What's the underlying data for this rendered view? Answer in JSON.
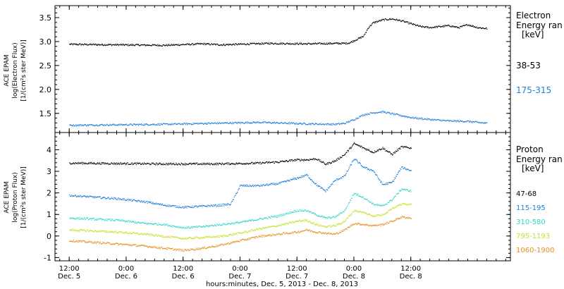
{
  "chart_data": [
    {
      "type": "scatter",
      "panel": "electron",
      "ylabel_lines": [
        "ACE EPAM",
        "log(Electron Flux)",
        "[1/(cm²s ster MeV)]"
      ],
      "legend_title_lines": [
        "Electron",
        "Energy ran",
        "[keV]"
      ],
      "ylim": [
        1.1,
        3.75
      ],
      "yticks": [
        "1.5",
        "2.0",
        "2.5",
        "3.0",
        "3.5"
      ],
      "series": [
        {
          "name": "38-53",
          "color": "#000000",
          "points": [
            [
              0,
              2.95
            ],
            [
              20,
              2.93
            ],
            [
              28,
              2.96
            ],
            [
              32,
              2.94
            ],
            [
              42,
              2.97
            ],
            [
              50,
              2.96
            ],
            [
              56,
              2.97
            ],
            [
              58,
              2.97
            ],
            [
              59,
              2.98
            ],
            [
              62,
              3.12
            ],
            [
              63,
              3.3
            ],
            [
              64,
              3.4
            ],
            [
              66,
              3.46
            ],
            [
              68,
              3.48
            ],
            [
              70,
              3.44
            ],
            [
              72,
              3.38
            ],
            [
              74,
              3.32
            ],
            [
              76,
              3.3
            ],
            [
              78,
              3.32
            ],
            [
              80,
              3.34
            ],
            [
              82,
              3.3
            ],
            [
              84,
              3.36
            ],
            [
              86,
              3.3
            ],
            [
              88,
              3.28
            ]
          ]
        },
        {
          "name": "175-315",
          "color": "#1f7fd6",
          "points": [
            [
              0,
              1.26
            ],
            [
              20,
              1.28
            ],
            [
              30,
              1.3
            ],
            [
              40,
              1.32
            ],
            [
              50,
              1.29
            ],
            [
              56,
              1.28
            ],
            [
              58,
              1.3
            ],
            [
              60,
              1.38
            ],
            [
              62,
              1.48
            ],
            [
              64,
              1.52
            ],
            [
              66,
              1.54
            ],
            [
              68,
              1.5
            ],
            [
              70,
              1.46
            ],
            [
              72,
              1.42
            ],
            [
              76,
              1.38
            ],
            [
              80,
              1.35
            ],
            [
              84,
              1.34
            ],
            [
              88,
              1.3
            ]
          ]
        }
      ]
    },
    {
      "type": "scatter",
      "panel": "proton",
      "ylabel_lines": [
        "ACE EPAM",
        "log(Proton Flux)",
        "[1/(cm²s ster MeV)]"
      ],
      "legend_title_lines": [
        "Proton",
        "Energy ran",
        "[keV]"
      ],
      "ylim": [
        -1.15,
        4.8
      ],
      "yticks": [
        "-1",
        "0",
        "1",
        "2",
        "3",
        "4"
      ],
      "xlabel": "hours:minutes, Dec. 5, 2013 - Dec. 8, 2013",
      "xlim": [
        -3,
        93
      ],
      "xticks": [
        {
          "x": 0,
          "time": "12:00",
          "day": "Dec. 5"
        },
        {
          "x": 12,
          "time": "0:00",
          "day": "Dec. 6"
        },
        {
          "x": 24,
          "time": "12:00",
          "day": "Dec. 6"
        },
        {
          "x": 36,
          "time": "0:00",
          "day": "Dec. 7"
        },
        {
          "x": 48,
          "time": "12:00",
          "day": "Dec. 7"
        },
        {
          "x": 60,
          "time": "0:00",
          "day": "Dec. 8"
        },
        {
          "x": 72,
          "time": "12:00",
          "day": "Dec. 8"
        }
      ],
      "series": [
        {
          "name": "47-68",
          "color": "#000000",
          "points": [
            [
              0,
              3.4
            ],
            [
              10,
              3.38
            ],
            [
              20,
              3.36
            ],
            [
              30,
              3.36
            ],
            [
              36,
              3.38
            ],
            [
              40,
              3.4
            ],
            [
              44,
              3.45
            ],
            [
              48,
              3.55
            ],
            [
              50,
              3.55
            ],
            [
              52,
              3.6
            ],
            [
              54,
              3.35
            ],
            [
              56,
              3.5
            ],
            [
              58,
              3.8
            ],
            [
              60,
              4.3
            ],
            [
              62,
              4.1
            ],
            [
              64,
              3.9
            ],
            [
              66,
              4.1
            ],
            [
              68,
              3.8
            ],
            [
              70,
              4.15
            ],
            [
              72,
              4.1
            ]
          ]
        },
        {
          "name": "115-195",
          "color": "#1f7fd6",
          "points": [
            [
              0,
              1.9
            ],
            [
              10,
              1.75
            ],
            [
              16,
              1.6
            ],
            [
              20,
              1.45
            ],
            [
              24,
              1.35
            ],
            [
              28,
              1.4
            ],
            [
              32,
              1.45
            ],
            [
              34,
              1.5
            ],
            [
              36,
              2.35
            ],
            [
              40,
              2.35
            ],
            [
              44,
              2.45
            ],
            [
              48,
              2.7
            ],
            [
              50,
              2.85
            ],
            [
              52,
              2.4
            ],
            [
              54,
              2.1
            ],
            [
              56,
              2.6
            ],
            [
              58,
              2.8
            ],
            [
              60,
              3.6
            ],
            [
              62,
              3.2
            ],
            [
              64,
              3.05
            ],
            [
              66,
              2.4
            ],
            [
              68,
              2.5
            ],
            [
              70,
              3.2
            ],
            [
              72,
              3.05
            ]
          ]
        },
        {
          "name": "310-580",
          "color": "#33d6c8",
          "points": [
            [
              0,
              0.85
            ],
            [
              10,
              0.75
            ],
            [
              16,
              0.6
            ],
            [
              20,
              0.55
            ],
            [
              24,
              0.4
            ],
            [
              28,
              0.45
            ],
            [
              32,
              0.55
            ],
            [
              36,
              0.65
            ],
            [
              40,
              0.8
            ],
            [
              44,
              0.95
            ],
            [
              48,
              1.2
            ],
            [
              50,
              1.2
            ],
            [
              52,
              1.0
            ],
            [
              54,
              0.85
            ],
            [
              56,
              0.9
            ],
            [
              58,
              1.2
            ],
            [
              60,
              2.0
            ],
            [
              62,
              1.8
            ],
            [
              64,
              1.5
            ],
            [
              66,
              1.4
            ],
            [
              68,
              1.7
            ],
            [
              70,
              2.2
            ],
            [
              72,
              2.1
            ]
          ]
        },
        {
          "name": "795-1193",
          "color": "#c8e02a",
          "points": [
            [
              0,
              0.3
            ],
            [
              10,
              0.2
            ],
            [
              16,
              0.1
            ],
            [
              20,
              0.0
            ],
            [
              24,
              -0.1
            ],
            [
              28,
              -0.05
            ],
            [
              32,
              0.0
            ],
            [
              36,
              0.15
            ],
            [
              40,
              0.35
            ],
            [
              44,
              0.5
            ],
            [
              48,
              0.7
            ],
            [
              50,
              0.75
            ],
            [
              52,
              0.55
            ],
            [
              54,
              0.45
            ],
            [
              56,
              0.5
            ],
            [
              58,
              0.7
            ],
            [
              60,
              1.2
            ],
            [
              62,
              1.1
            ],
            [
              64,
              0.95
            ],
            [
              66,
              1.0
            ],
            [
              68,
              1.3
            ],
            [
              70,
              1.5
            ],
            [
              72,
              1.5
            ]
          ]
        },
        {
          "name": "1060-1900",
          "color": "#e88f22",
          "points": [
            [
              0,
              -0.2
            ],
            [
              10,
              -0.35
            ],
            [
              16,
              -0.45
            ],
            [
              20,
              -0.55
            ],
            [
              24,
              -0.65
            ],
            [
              28,
              -0.55
            ],
            [
              32,
              -0.4
            ],
            [
              36,
              -0.2
            ],
            [
              40,
              0.0
            ],
            [
              44,
              0.1
            ],
            [
              48,
              0.2
            ],
            [
              50,
              0.3
            ],
            [
              52,
              0.2
            ],
            [
              54,
              0.15
            ],
            [
              56,
              0.1
            ],
            [
              58,
              0.3
            ],
            [
              60,
              0.6
            ],
            [
              62,
              0.55
            ],
            [
              64,
              0.5
            ],
            [
              66,
              0.55
            ],
            [
              68,
              0.7
            ],
            [
              70,
              0.9
            ],
            [
              72,
              0.85
            ]
          ]
        }
      ]
    }
  ]
}
